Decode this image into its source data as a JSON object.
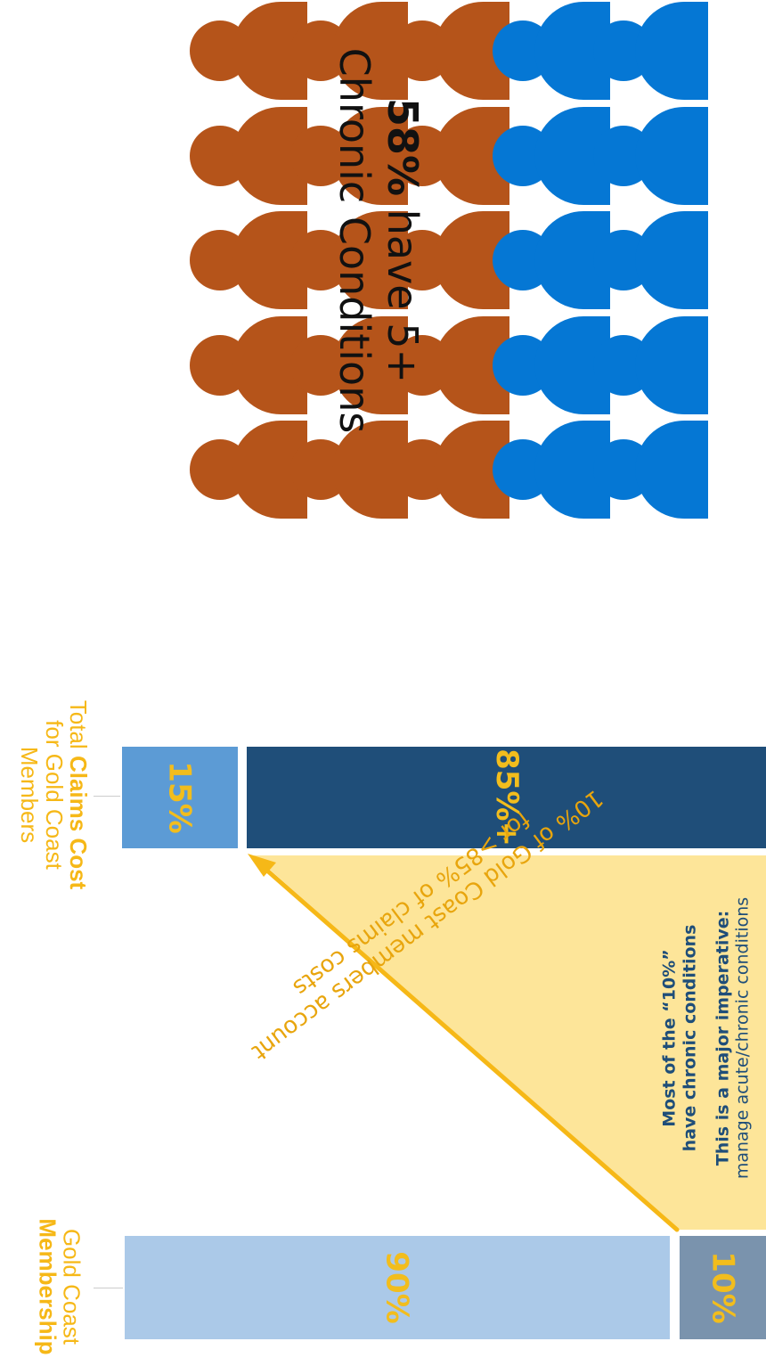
{
  "headline": {
    "percent": "58%",
    "line1_rest": " have 5+",
    "line2": "Chronic Conditions"
  },
  "pictogram": {
    "columns_colors": [
      "#b5541a",
      "#b5541a",
      "#b5541a",
      "#b5541a",
      "#0577d4",
      "#0577d4",
      "#0577d4"
    ],
    "highlighted_color": "#b5541a",
    "other_color": "#0577d4",
    "icon": "person-icon"
  },
  "membership": {
    "label_line1": "Gold Coast",
    "label_line2": "Membership",
    "segments": [
      {
        "value": "90%",
        "share": 90,
        "color": "#abc9e8"
      },
      {
        "value": "10%",
        "share": 10,
        "color": "#7a93ad"
      }
    ]
  },
  "claims": {
    "label_line1_a": "Total ",
    "label_line1_b": "Claims Cost",
    "label_line2": "for Gold Coast",
    "label_line3": "Members",
    "segments": [
      {
        "value": "15%",
        "share": 15,
        "color": "#5c9bd5"
      },
      {
        "value": "85%+",
        "share": 85,
        "color": "#1f4e79"
      }
    ]
  },
  "callout": {
    "line1": "10% of Gold Coast members account",
    "line2": "for >85% of claims costs",
    "fill_color": "#fde599",
    "arrow_color": "#f6b817"
  },
  "note": {
    "line1": "Most of the “10%”",
    "line2": "have chronic conditions",
    "line3": "This is a major imperative:",
    "line4": "manage acute/chronic conditions"
  },
  "colors": {
    "value_text": "#f2bd1d",
    "label_text": "#f6b817"
  }
}
